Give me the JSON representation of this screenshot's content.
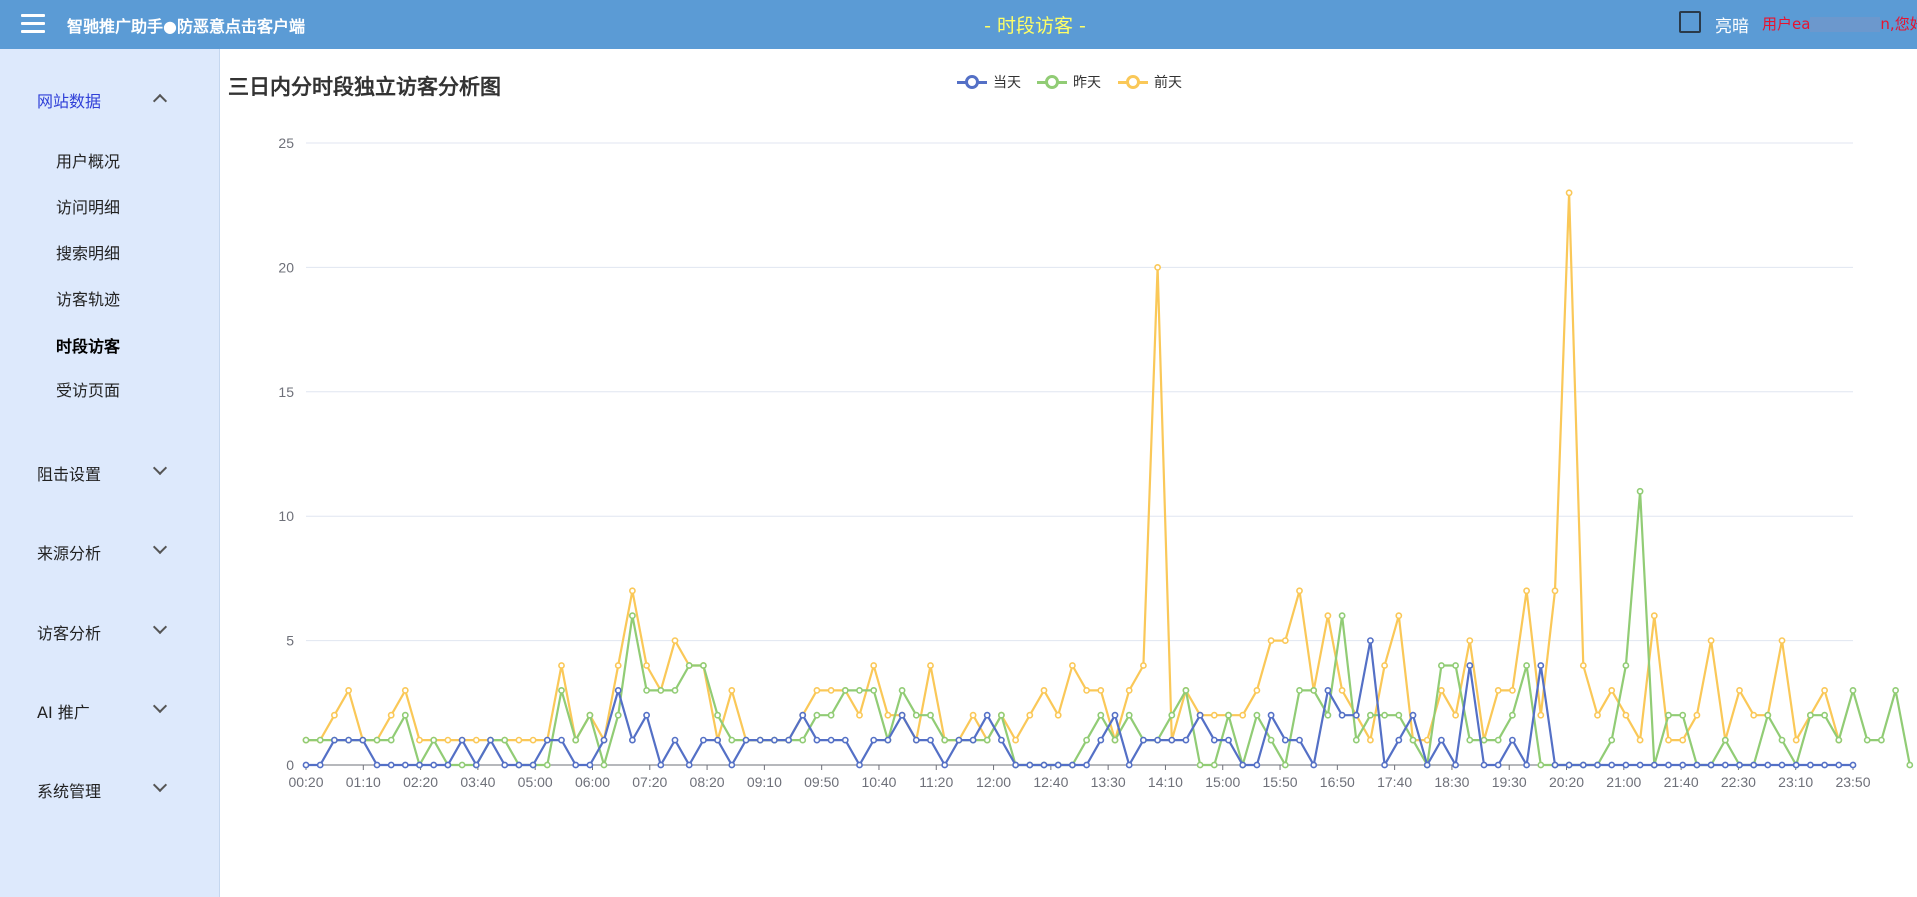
{
  "header": {
    "app_title": "智驰推广助手●防恶意点击客户端",
    "page_title": "- 时段访客 -",
    "theme_label": "亮暗",
    "user_greeting_prefix": "用户ea",
    "user_greeting_suffix": "n,您好!"
  },
  "sidebar": {
    "groups": [
      {
        "label": "网站数据",
        "expanded": true,
        "items": [
          "用户概况",
          "访问明细",
          "搜索明细",
          "访客轨迹",
          "时段访客",
          "受访页面"
        ],
        "active_item": "时段访客"
      },
      {
        "label": "阻击设置",
        "expanded": false
      },
      {
        "label": "来源分析",
        "expanded": false
      },
      {
        "label": "访客分析",
        "expanded": false
      },
      {
        "label": "AI 推广",
        "expanded": false
      },
      {
        "label": "系统管理",
        "expanded": false
      }
    ]
  },
  "chart_data": {
    "type": "line",
    "title": "三日内分时段独立访客分析图",
    "legend_position": "top-center",
    "grid": true,
    "ylim": [
      0,
      25
    ],
    "yticks": [
      0,
      5,
      10,
      15,
      20,
      25
    ],
    "xtick_labels": [
      "00:20",
      "01:10",
      "02:20",
      "03:40",
      "05:00",
      "06:00",
      "07:20",
      "08:20",
      "09:10",
      "09:50",
      "10:40",
      "11:20",
      "12:00",
      "12:40",
      "13:30",
      "14:10",
      "15:00",
      "15:50",
      "16:50",
      "17:40",
      "18:30",
      "19:30",
      "20:20",
      "21:00",
      "21:40",
      "22:30",
      "23:10",
      "23:50"
    ],
    "series": [
      {
        "name": "当天",
        "color": "#5470c6",
        "values": [
          0,
          0,
          1,
          1,
          1,
          0,
          0,
          0,
          0,
          0,
          0,
          1,
          0,
          1,
          0,
          0,
          0,
          1,
          1,
          0,
          0,
          1,
          3,
          1,
          2,
          0,
          1,
          0,
          1,
          1,
          0,
          1,
          1,
          1,
          1,
          2,
          1,
          1,
          1,
          0,
          1,
          1,
          2,
          1,
          1,
          0,
          1,
          1,
          2,
          1,
          0,
          0,
          0,
          0,
          0,
          0,
          1,
          2,
          0,
          1,
          1,
          1,
          1,
          2,
          1,
          1,
          0,
          0,
          2,
          1,
          1,
          0,
          3,
          2,
          2,
          5,
          0,
          1,
          2,
          0,
          1,
          0,
          4,
          0,
          0,
          1,
          0,
          4,
          0,
          0,
          0,
          0,
          0,
          0,
          0,
          0,
          0,
          0,
          0,
          0,
          0,
          0,
          0,
          0,
          0,
          0,
          0,
          0,
          0,
          0
        ]
      },
      {
        "name": "昨天",
        "color": "#91cc75",
        "values": [
          1,
          1,
          1,
          1,
          1,
          1,
          1,
          2,
          0,
          1,
          0,
          0,
          0,
          1,
          1,
          0,
          0,
          0,
          3,
          1,
          2,
          0,
          2,
          6,
          3,
          3,
          3,
          4,
          4,
          2,
          1,
          1,
          1,
          1,
          1,
          1,
          2,
          2,
          3,
          3,
          3,
          1,
          3,
          2,
          2,
          1,
          1,
          1,
          1,
          2,
          0,
          0,
          0,
          0,
          0,
          1,
          2,
          1,
          2,
          1,
          1,
          2,
          3,
          0,
          0,
          2,
          0,
          2,
          1,
          0,
          3,
          3,
          2,
          6,
          1,
          2,
          2,
          2,
          1,
          0,
          4,
          4,
          1,
          1,
          1,
          2,
          4,
          0,
          0,
          0,
          0,
          0,
          1,
          4,
          11,
          0,
          2,
          2,
          0,
          0,
          1,
          0,
          0,
          2,
          1,
          0,
          2,
          2,
          1,
          3,
          1,
          1,
          3,
          0
        ]
      },
      {
        "name": "前天",
        "color": "#fac858",
        "values": [
          1,
          1,
          2,
          3,
          1,
          1,
          2,
          3,
          1,
          1,
          1,
          1,
          1,
          1,
          1,
          1,
          1,
          1,
          4,
          1,
          2,
          1,
          4,
          7,
          4,
          3,
          5,
          4,
          4,
          1,
          3,
          1,
          1,
          1,
          1,
          2,
          3,
          3,
          3,
          2,
          4,
          2,
          2,
          1,
          4,
          1,
          1,
          2,
          1,
          2,
          1,
          2,
          3,
          2,
          4,
          3,
          3,
          1,
          3,
          4,
          20,
          1,
          3,
          2,
          2,
          2,
          2,
          3,
          5,
          5,
          7,
          3,
          6,
          3,
          2,
          1,
          4,
          6,
          1,
          1,
          3,
          2,
          5,
          1,
          3,
          3,
          7,
          2,
          7,
          23,
          4,
          2,
          3,
          2,
          1,
          6,
          1,
          1,
          2,
          5,
          1,
          3,
          2,
          2,
          5,
          1,
          2,
          3,
          1
        ]
      }
    ]
  }
}
